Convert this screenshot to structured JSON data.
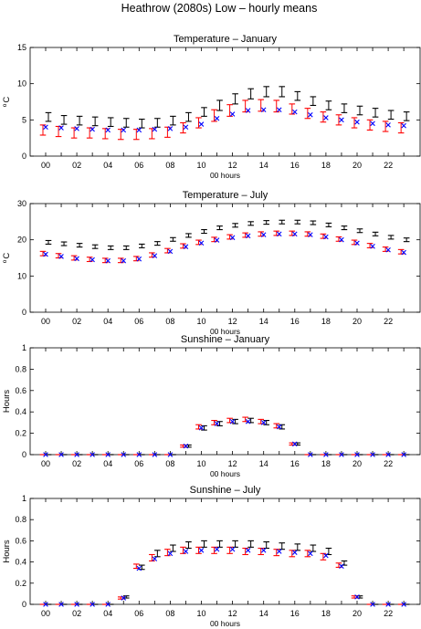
{
  "figure": {
    "title": "Heathrow (2080s) Low – hourly means"
  },
  "series_colors": {
    "black_bars": "#000000",
    "red_bars": "#ff0000",
    "blue_marker": "#0000ff"
  },
  "chart_data": [
    {
      "type": "errorbar",
      "title": "Temperature – January",
      "xlabel": "00 hours",
      "ylabel": "°C",
      "ylabel_base": "C",
      "ylabel_degree": "o",
      "ylim": [
        0,
        15
      ],
      "yticks": [
        0,
        5,
        10,
        15
      ],
      "ytick_labels": [
        "0",
        "5",
        "10",
        "15"
      ],
      "xticks": [
        0,
        2,
        4,
        6,
        8,
        10,
        12,
        14,
        16,
        18,
        20,
        22
      ],
      "xtick_labels": [
        "00",
        "02",
        "04",
        "06",
        "08",
        "10",
        "12",
        "14",
        "16",
        "18",
        "20",
        "22"
      ],
      "x": [
        0,
        1,
        2,
        3,
        4,
        5,
        6,
        7,
        8,
        9,
        10,
        11,
        12,
        13,
        14,
        15,
        16,
        17,
        18,
        19,
        20,
        21,
        22,
        23
      ],
      "series": [
        {
          "color": "#000000",
          "marker": "errorbar",
          "values": [
            5.4,
            5.0,
            4.9,
            4.8,
            4.7,
            4.6,
            4.5,
            4.6,
            4.9,
            5.4,
            6.1,
            7.0,
            7.9,
            8.6,
            8.9,
            8.9,
            8.3,
            7.6,
            7.0,
            6.6,
            6.3,
            6.0,
            5.7,
            5.5
          ],
          "err": [
            0.6,
            0.6,
            0.6,
            0.6,
            0.6,
            0.6,
            0.6,
            0.6,
            0.6,
            0.6,
            0.6,
            0.7,
            0.7,
            0.7,
            0.7,
            0.7,
            0.6,
            0.6,
            0.6,
            0.6,
            0.6,
            0.6,
            0.6,
            0.6
          ]
        },
        {
          "color": "#ff0000",
          "marker": "errorbar",
          "values": [
            3.6,
            3.4,
            3.2,
            3.2,
            3.1,
            3.0,
            3.0,
            3.1,
            3.3,
            3.9,
            4.6,
            5.6,
            6.3,
            6.9,
            7.0,
            6.9,
            6.5,
            5.9,
            5.4,
            5.0,
            4.6,
            4.3,
            4.1,
            3.9
          ],
          "err": [
            0.7,
            0.7,
            0.7,
            0.7,
            0.7,
            0.7,
            0.7,
            0.7,
            0.7,
            0.7,
            0.7,
            0.8,
            0.8,
            0.8,
            0.8,
            0.8,
            0.7,
            0.7,
            0.7,
            0.7,
            0.7,
            0.7,
            0.7,
            0.7
          ]
        },
        {
          "color": "#0000ff",
          "marker": "x",
          "values": [
            4.0,
            3.9,
            3.8,
            3.7,
            3.6,
            3.6,
            3.6,
            3.7,
            3.8,
            4.0,
            4.4,
            5.2,
            5.8,
            6.3,
            6.4,
            6.4,
            6.1,
            5.7,
            5.3,
            5.0,
            4.7,
            4.5,
            4.3,
            4.2
          ]
        }
      ]
    },
    {
      "type": "errorbar",
      "title": "Temperature – July",
      "xlabel": "00 hours",
      "ylabel": "°C",
      "ylabel_base": "C",
      "ylabel_degree": "o",
      "ylim": [
        0,
        30
      ],
      "yticks": [
        0,
        10,
        20,
        30
      ],
      "ytick_labels": [
        "0",
        "10",
        "20",
        "30"
      ],
      "xticks": [
        0,
        2,
        4,
        6,
        8,
        10,
        12,
        14,
        16,
        18,
        20,
        22
      ],
      "xtick_labels": [
        "00",
        "02",
        "04",
        "06",
        "08",
        "10",
        "12",
        "14",
        "16",
        "18",
        "20",
        "22"
      ],
      "x": [
        0,
        1,
        2,
        3,
        4,
        5,
        6,
        7,
        8,
        9,
        10,
        11,
        12,
        13,
        14,
        15,
        16,
        17,
        18,
        19,
        20,
        21,
        22,
        23
      ],
      "series": [
        {
          "color": "#000000",
          "marker": "errorbar",
          "values": [
            19.3,
            18.9,
            18.5,
            18.1,
            17.8,
            17.8,
            18.3,
            19.0,
            20.1,
            21.2,
            22.3,
            23.3,
            24.0,
            24.5,
            24.8,
            24.9,
            24.9,
            24.7,
            24.1,
            23.3,
            22.5,
            21.6,
            20.7,
            20.0
          ],
          "err": [
            0.5,
            0.5,
            0.5,
            0.5,
            0.5,
            0.5,
            0.5,
            0.5,
            0.5,
            0.5,
            0.5,
            0.5,
            0.5,
            0.5,
            0.5,
            0.5,
            0.5,
            0.5,
            0.5,
            0.5,
            0.5,
            0.5,
            0.5,
            0.5
          ]
        },
        {
          "color": "#ff0000",
          "marker": "errorbar",
          "values": [
            16.2,
            15.6,
            15.0,
            14.6,
            14.3,
            14.3,
            14.8,
            15.8,
            17.0,
            18.3,
            19.3,
            20.1,
            20.8,
            21.3,
            21.6,
            21.8,
            21.8,
            21.6,
            21.0,
            20.2,
            19.3,
            18.4,
            17.4,
            16.7
          ],
          "err": [
            0.6,
            0.6,
            0.6,
            0.6,
            0.6,
            0.6,
            0.6,
            0.6,
            0.6,
            0.6,
            0.6,
            0.6,
            0.6,
            0.6,
            0.6,
            0.6,
            0.6,
            0.6,
            0.6,
            0.6,
            0.6,
            0.6,
            0.6,
            0.6
          ]
        },
        {
          "color": "#0000ff",
          "marker": "x",
          "values": [
            16.0,
            15.4,
            14.8,
            14.5,
            14.2,
            14.2,
            14.7,
            15.6,
            16.8,
            18.1,
            19.1,
            19.9,
            20.6,
            21.1,
            21.4,
            21.6,
            21.6,
            21.4,
            20.8,
            20.0,
            19.1,
            18.2,
            17.2,
            16.5
          ]
        }
      ]
    },
    {
      "type": "errorbar",
      "title": "Sunshine – January",
      "xlabel": "00 hours",
      "ylabel": "Hours",
      "ylim": [
        0,
        1
      ],
      "yticks": [
        0,
        0.2,
        0.4,
        0.6,
        0.8,
        1
      ],
      "ytick_labels": [
        "0",
        "0.2",
        "0.4",
        "0.6",
        "0.8",
        "1"
      ],
      "xticks": [
        0,
        2,
        4,
        6,
        8,
        10,
        12,
        14,
        16,
        18,
        20,
        22
      ],
      "xtick_labels": [
        "00",
        "02",
        "04",
        "06",
        "08",
        "10",
        "12",
        "14",
        "16",
        "18",
        "20",
        "22"
      ],
      "x": [
        0,
        1,
        2,
        3,
        4,
        5,
        6,
        7,
        8,
        9,
        10,
        11,
        12,
        13,
        14,
        15,
        16,
        17,
        18,
        19,
        20,
        21,
        22,
        23
      ],
      "series": [
        {
          "color": "#000000",
          "marker": "errorbar",
          "values": [
            0,
            0,
            0,
            0,
            0,
            0,
            0,
            0,
            0,
            0.08,
            0.25,
            0.29,
            0.31,
            0.32,
            0.3,
            0.26,
            0.1,
            0,
            0,
            0,
            0,
            0,
            0,
            0
          ],
          "err": [
            0,
            0,
            0,
            0,
            0,
            0,
            0,
            0,
            0,
            0.01,
            0.02,
            0.02,
            0.02,
            0.02,
            0.02,
            0.02,
            0.01,
            0,
            0,
            0,
            0,
            0,
            0,
            0
          ]
        },
        {
          "color": "#ff0000",
          "marker": "errorbar",
          "values": [
            0,
            0,
            0,
            0,
            0,
            0,
            0,
            0,
            0,
            0.08,
            0.26,
            0.3,
            0.32,
            0.33,
            0.31,
            0.27,
            0.1,
            0,
            0,
            0,
            0,
            0,
            0,
            0
          ],
          "err": [
            0,
            0,
            0,
            0,
            0,
            0,
            0,
            0,
            0,
            0.01,
            0.02,
            0.02,
            0.02,
            0.02,
            0.02,
            0.02,
            0.01,
            0,
            0,
            0,
            0,
            0,
            0,
            0
          ]
        },
        {
          "color": "#0000ff",
          "marker": "x",
          "values": [
            0,
            0,
            0,
            0,
            0,
            0,
            0,
            0,
            0,
            0.08,
            0.25,
            0.29,
            0.31,
            0.31,
            0.3,
            0.26,
            0.1,
            0,
            0,
            0,
            0,
            0,
            0,
            0
          ]
        }
      ]
    },
    {
      "type": "errorbar",
      "title": "Sunshine – July",
      "xlabel": "00 hours",
      "ylabel": "Hours",
      "ylim": [
        0,
        1
      ],
      "yticks": [
        0,
        0.2,
        0.4,
        0.6,
        0.8,
        1
      ],
      "ytick_labels": [
        "0",
        "0.2",
        "0.4",
        "0.6",
        "0.8",
        "1"
      ],
      "xticks": [
        0,
        2,
        4,
        6,
        8,
        10,
        12,
        14,
        16,
        18,
        20,
        22
      ],
      "xtick_labels": [
        "00",
        "02",
        "04",
        "06",
        "08",
        "10",
        "12",
        "14",
        "16",
        "18",
        "20",
        "22"
      ],
      "x": [
        0,
        1,
        2,
        3,
        4,
        5,
        6,
        7,
        8,
        9,
        10,
        11,
        12,
        13,
        14,
        15,
        16,
        17,
        18,
        19,
        20,
        21,
        22,
        23
      ],
      "series": [
        {
          "color": "#000000",
          "marker": "errorbar",
          "values": [
            0,
            0,
            0,
            0,
            0,
            0.07,
            0.35,
            0.48,
            0.53,
            0.56,
            0.57,
            0.57,
            0.57,
            0.57,
            0.56,
            0.55,
            0.54,
            0.53,
            0.5,
            0.39,
            0.07,
            0,
            0,
            0
          ],
          "err": [
            0,
            0,
            0,
            0,
            0,
            0.01,
            0.02,
            0.03,
            0.03,
            0.03,
            0.03,
            0.03,
            0.03,
            0.03,
            0.03,
            0.03,
            0.03,
            0.03,
            0.03,
            0.02,
            0.01,
            0,
            0,
            0
          ]
        },
        {
          "color": "#ff0000",
          "marker": "errorbar",
          "values": [
            0,
            0,
            0,
            0,
            0,
            0.06,
            0.36,
            0.44,
            0.49,
            0.51,
            0.51,
            0.51,
            0.51,
            0.5,
            0.5,
            0.49,
            0.48,
            0.48,
            0.45,
            0.37,
            0.07,
            0,
            0,
            0
          ],
          "err": [
            0,
            0,
            0,
            0,
            0,
            0.01,
            0.02,
            0.03,
            0.03,
            0.03,
            0.03,
            0.03,
            0.03,
            0.03,
            0.03,
            0.03,
            0.03,
            0.03,
            0.03,
            0.02,
            0.01,
            0,
            0,
            0
          ]
        },
        {
          "color": "#0000ff",
          "marker": "x",
          "values": [
            0,
            0,
            0,
            0,
            0,
            0.06,
            0.34,
            0.43,
            0.48,
            0.5,
            0.51,
            0.52,
            0.52,
            0.51,
            0.51,
            0.5,
            0.49,
            0.48,
            0.46,
            0.36,
            0.07,
            0,
            0,
            0
          ]
        }
      ]
    }
  ]
}
